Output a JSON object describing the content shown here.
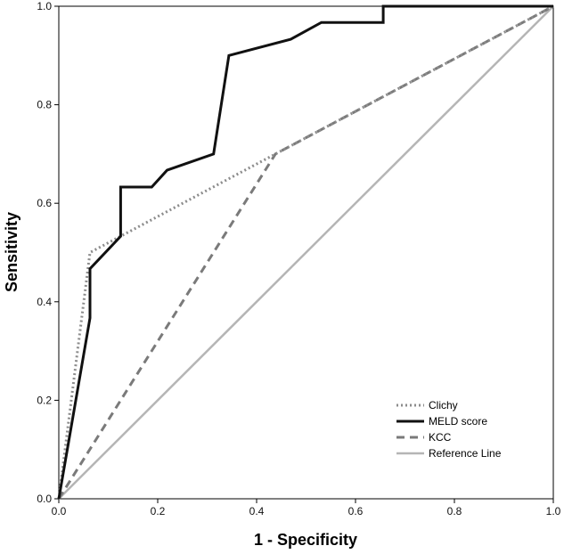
{
  "chart_data": {
    "type": "line",
    "title": "",
    "xlabel": "1 - Specificity",
    "ylabel": "Sensitivity",
    "xlim": [
      0,
      1
    ],
    "ylim": [
      0,
      1
    ],
    "xticks": [
      "0.0",
      "0.2",
      "0.4",
      "0.6",
      "0.8",
      "1.0"
    ],
    "yticks": [
      "0.0",
      "0.2",
      "0.4",
      "0.6",
      "0.8",
      "1.0"
    ],
    "grid": false,
    "legend_position": "bottom-right",
    "series": [
      {
        "name": "Clichy",
        "style": "dotted",
        "color": "#8c8c8c",
        "points": [
          [
            0.0,
            0.0
          ],
          [
            0.063,
            0.5
          ],
          [
            0.438,
            0.7
          ],
          [
            1.0,
            1.0
          ]
        ]
      },
      {
        "name": "MELD score",
        "style": "solid",
        "color": "#111111",
        "points": [
          [
            0.0,
            0.0
          ],
          [
            0.063,
            0.367
          ],
          [
            0.063,
            0.467
          ],
          [
            0.125,
            0.533
          ],
          [
            0.125,
            0.633
          ],
          [
            0.188,
            0.633
          ],
          [
            0.219,
            0.667
          ],
          [
            0.313,
            0.7
          ],
          [
            0.344,
            0.9
          ],
          [
            0.469,
            0.933
          ],
          [
            0.531,
            0.967
          ],
          [
            0.656,
            0.967
          ],
          [
            0.656,
            1.0
          ],
          [
            1.0,
            1.0
          ]
        ]
      },
      {
        "name": "KCC",
        "style": "dashed",
        "color": "#7a7a7a",
        "points": [
          [
            0.0,
            0.0
          ],
          [
            0.438,
            0.7
          ],
          [
            1.0,
            1.0
          ]
        ]
      },
      {
        "name": "Reference Line",
        "style": "solid-light",
        "color": "#b5b5b5",
        "points": [
          [
            0.0,
            0.0
          ],
          [
            1.0,
            1.0
          ]
        ]
      }
    ]
  }
}
